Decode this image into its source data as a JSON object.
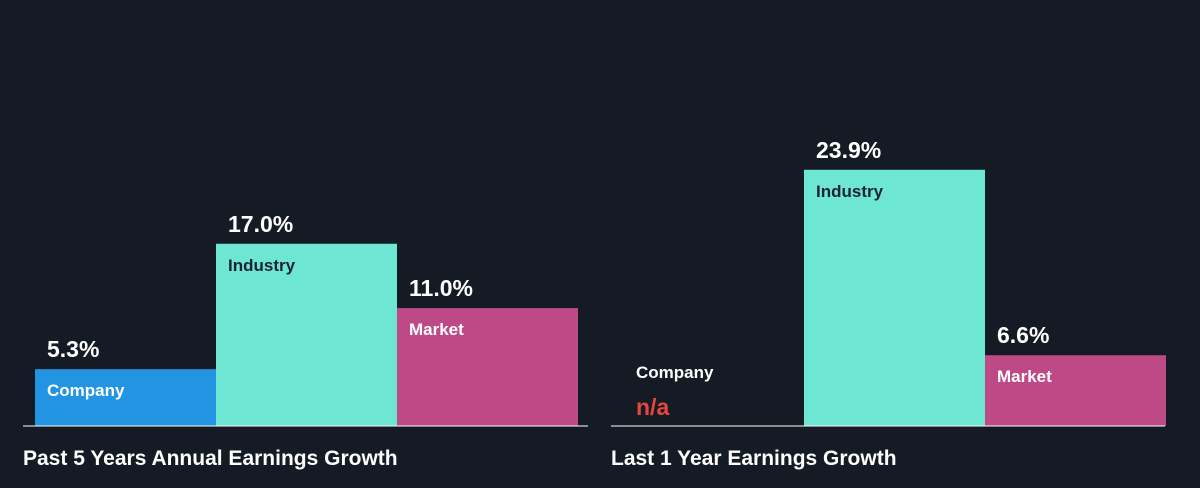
{
  "colors": {
    "background": "#151b24",
    "company": "#2394e1",
    "industry": "#6ee6d4",
    "market": "#bd4a87",
    "baseline": "#ffffff",
    "na": "#e8453c"
  },
  "chart_data": [
    {
      "type": "bar",
      "title": "Past 5 Years Annual Earnings Growth",
      "categories": [
        "Company",
        "Industry",
        "Market"
      ],
      "values": [
        5.3,
        17.0,
        11.0
      ],
      "value_labels": [
        "5.3%",
        "17.0%",
        "11.0%"
      ],
      "unit": "%"
    },
    {
      "type": "bar",
      "title": "Last 1 Year Earnings Growth",
      "categories": [
        "Company",
        "Industry",
        "Market"
      ],
      "values": [
        null,
        23.9,
        6.6
      ],
      "value_labels": [
        "n/a",
        "23.9%",
        "6.6%"
      ],
      "unit": "%"
    }
  ]
}
